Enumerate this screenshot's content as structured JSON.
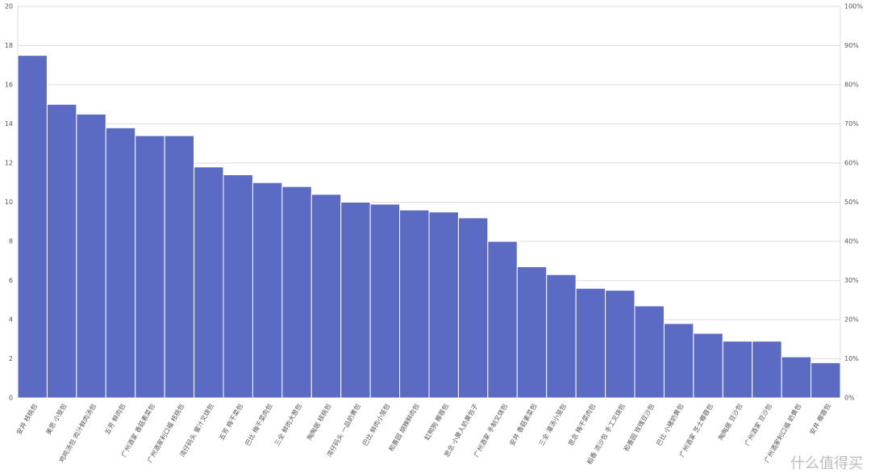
{
  "chart_data": {
    "type": "bar",
    "categories": [
      "安井 核桃包",
      "美思 小笼包",
      "鸡鸣汤包 肉汁鲜肉汤包",
      "五芳 鲜肉包",
      "广州酒家 香菇素菜包",
      "广州酒家利口福 核桃包",
      "湾仔码头 蜜汁叉烧包",
      "五芳 梅干菜包",
      "巴比 梅干菜肉包",
      "三全 鲜肉大葱包",
      "陶陶居 核桃包",
      "湾仔码头 一品奶黄包",
      "巴比 鲜肉小笼包",
      "和善园 胡辣鲜肉包",
      "缸鸭狗 椰蓉包",
      "思念 小黄人奶黄包子",
      "广州酒家 手制叉烧包",
      "安井 香菇素菜包",
      "三全 灌汤小笼包",
      "思念 梅干菜肉包",
      "稻香 流沙包 手工叉烧包",
      "和善园 玫瑰豆沙包",
      "巴比 小猪奶黄包",
      "广州酒家 芝士椰蓉包",
      "陶陶居 豆沙包",
      "广州酒家 豆沙包",
      "广州酒家利口福 奶黄包",
      "安井 椰蓉包"
    ],
    "values": [
      17.5,
      15,
      14.5,
      13.8,
      13.4,
      13.4,
      11.8,
      11.4,
      11,
      10.8,
      10.4,
      10,
      9.9,
      9.6,
      9.5,
      9.2,
      8,
      6.7,
      6.3,
      5.6,
      5.5,
      4.7,
      3.8,
      3.3,
      2.9,
      2.9,
      2.1,
      1.8
    ],
    "color": "#5b6ac3",
    "ylim": [
      0,
      20
    ],
    "yticks": [
      0,
      2,
      4,
      6,
      8,
      10,
      12,
      14,
      16,
      18,
      20
    ],
    "y2lim": [
      0,
      100
    ],
    "y2ticks": [
      {
        "value": 0,
        "label": "0%"
      },
      {
        "value": 10,
        "label": "10%"
      },
      {
        "value": 20,
        "label": "20%"
      },
      {
        "value": 30,
        "label": "30%"
      },
      {
        "value": 40,
        "label": "40%"
      },
      {
        "value": 50,
        "label": "50%"
      },
      {
        "value": 60,
        "label": "60%"
      },
      {
        "value": 70,
        "label": "70%"
      },
      {
        "value": 80,
        "label": "80%"
      },
      {
        "value": 90,
        "label": "90%"
      },
      {
        "value": 100,
        "label": "100%"
      }
    ],
    "grid": true,
    "watermark": "什么值得买"
  }
}
